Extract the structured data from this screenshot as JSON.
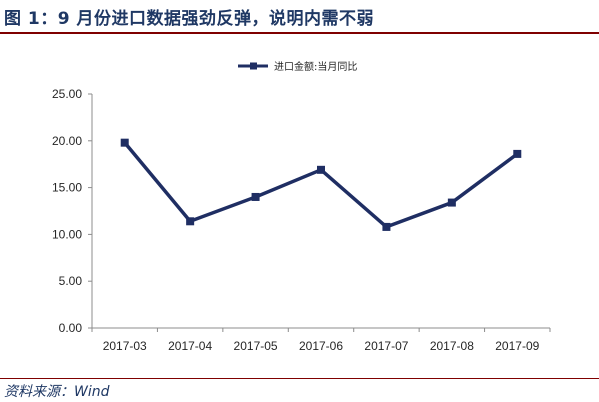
{
  "figure": {
    "title": "图 1：9 月份进口数据强劲反弹，说明内需不弱",
    "source": "资料来源：Wind"
  },
  "colors": {
    "series_line": "#1f2e63",
    "axis": "#8c8c8c",
    "title_text": "#1f3864",
    "rule": "#7f0000"
  },
  "chart_data": {
    "type": "line",
    "categories": [
      "2017-03",
      "2017-04",
      "2017-05",
      "2017-06",
      "2017-07",
      "2017-08",
      "2017-09"
    ],
    "series": [
      {
        "name": "进口金额:当月同比",
        "values": [
          19.8,
          11.4,
          14.0,
          16.9,
          10.8,
          13.4,
          18.6
        ]
      }
    ],
    "ylim": [
      0,
      25
    ],
    "yticks": [
      "0.00",
      "5.00",
      "10.00",
      "15.00",
      "20.00",
      "25.00"
    ],
    "ytick_values": [
      0,
      5,
      10,
      15,
      20,
      25
    ],
    "grid": false,
    "legend": "top-center",
    "marker": "square"
  }
}
